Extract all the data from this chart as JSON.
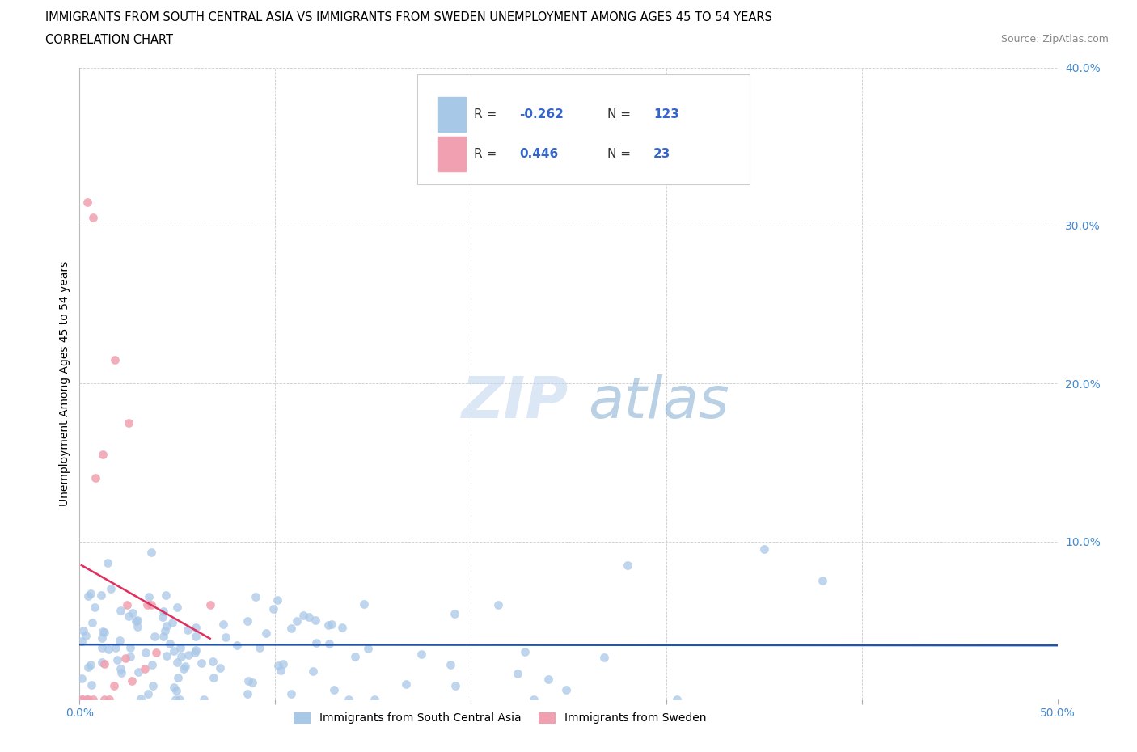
{
  "title_line1": "IMMIGRANTS FROM SOUTH CENTRAL ASIA VS IMMIGRANTS FROM SWEDEN UNEMPLOYMENT AMONG AGES 45 TO 54 YEARS",
  "title_line2": "CORRELATION CHART",
  "source_text": "Source: ZipAtlas.com",
  "ylabel": "Unemployment Among Ages 45 to 54 years",
  "xlim": [
    0.0,
    0.5
  ],
  "ylim": [
    0.0,
    0.4
  ],
  "xticks": [
    0.0,
    0.1,
    0.2,
    0.3,
    0.4,
    0.5
  ],
  "yticks": [
    0.0,
    0.1,
    0.2,
    0.3,
    0.4
  ],
  "xticklabels": [
    "0.0%",
    "",
    "",
    "",
    "",
    "50.0%"
  ],
  "yticklabels": [
    "",
    "10.0%",
    "20.0%",
    "30.0%",
    "40.0%"
  ],
  "series1_label": "Immigrants from South Central Asia",
  "series1_color": "#a8c8e8",
  "series1_line_color": "#2255aa",
  "series1_R": -0.262,
  "series1_N": 123,
  "series2_label": "Immigrants from Sweden",
  "series2_color": "#f0a0b0",
  "series2_line_color": "#e03060",
  "series2_R": 0.446,
  "series2_N": 23,
  "watermark_zip": "ZIP",
  "watermark_atlas": "atlas",
  "background_color": "#ffffff",
  "grid_color": "#cccccc",
  "title_fontsize": 11,
  "axis_label_fontsize": 10,
  "tick_fontsize": 10,
  "tick_color": "#4488cc",
  "legend_R_color": "#3366cc",
  "legend_N_color": "#3366cc"
}
